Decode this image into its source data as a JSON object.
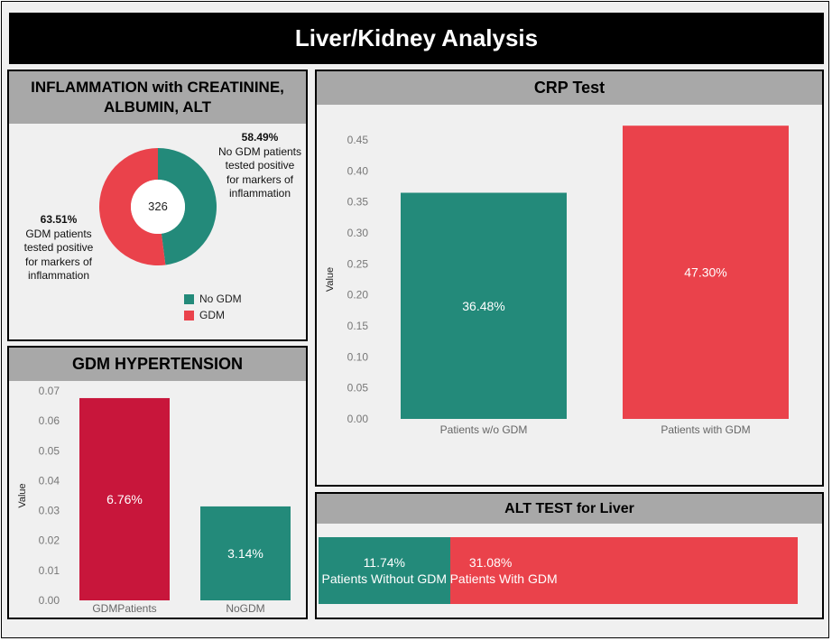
{
  "dashboard": {
    "title": "Liver/Kidney Analysis"
  },
  "colors": {
    "teal": "#238A7A",
    "red": "#EA424B",
    "crimson": "#C8163B",
    "header_gray": "#A8A8A8",
    "panel_bg": "#F0F0F0"
  },
  "inflammation": {
    "title_line1": "INFLAMMATION with CREATININE,",
    "title_line2": "ALBUMIN, ALT",
    "center_label": "326",
    "nogdm_pct": "58.49%",
    "nogdm_note": [
      "No GDM patients",
      "tested positive",
      "for markers of",
      "inflammation"
    ],
    "gdm_pct": "63.51%",
    "gdm_note": [
      "GDM patients",
      "tested positive",
      "for markers of",
      "inflammation"
    ],
    "legend": [
      {
        "label": "No GDM",
        "color": "#238A7A"
      },
      {
        "label": "GDM",
        "color": "#EA424B"
      }
    ]
  },
  "hypertension": {
    "title": "GDM HYPERTENSION"
  },
  "crp": {
    "title": "CRP Test"
  },
  "alt": {
    "title": "ALT TEST for Liver",
    "segments": [
      {
        "pct": "11.74%",
        "label": "Patients Without GDM",
        "color": "#238A7A"
      },
      {
        "pct": "31.08%",
        "label": "Patients With GDM",
        "color": "#EA424B"
      }
    ]
  },
  "chart_data": [
    {
      "id": "inflammation",
      "type": "pie",
      "title": "INFLAMMATION with CREATININE, ALBUMIN, ALT",
      "center_label": "326",
      "categories": [
        "No GDM",
        "GDM"
      ],
      "values": [
        0.4794,
        0.5206
      ],
      "colors": [
        "#238A7A",
        "#EA424B"
      ],
      "annotations": [
        "58.49% No GDM patients tested positive for markers of inflammation",
        "63.51% GDM patients tested positive for markers of inflammation"
      ],
      "legend": "bottom-right"
    },
    {
      "id": "hypertension",
      "type": "bar",
      "title": "GDM HYPERTENSION",
      "categories": [
        "GDMPatients",
        "NoGDM"
      ],
      "values": [
        0.0676,
        0.0314
      ],
      "labels": [
        "6.76%",
        "3.14%"
      ],
      "colors": [
        "#C8163B",
        "#238A7A"
      ],
      "ylabel": "Value",
      "ylim": [
        0,
        0.07
      ],
      "yticks": [
        0.0,
        0.01,
        0.02,
        0.03,
        0.04,
        0.05,
        0.06,
        0.07
      ],
      "ytick_labels": [
        "0.00",
        "0.01",
        "0.02",
        "0.03",
        "0.04",
        "0.05",
        "0.06",
        "0.07"
      ],
      "grid": false
    },
    {
      "id": "crp",
      "type": "bar",
      "title": "CRP Test",
      "categories": [
        "Patients w/o GDM",
        "Patients with GDM"
      ],
      "values": [
        0.3648,
        0.473
      ],
      "labels": [
        "36.48%",
        "47.30%"
      ],
      "colors": [
        "#238A7A",
        "#EA424B"
      ],
      "ylabel": "Value",
      "ylim": [
        0,
        0.45
      ],
      "yticks": [
        0.0,
        0.05,
        0.1,
        0.15,
        0.2,
        0.25,
        0.3,
        0.35,
        0.4,
        0.45
      ],
      "ytick_labels": [
        "0.00",
        "0.05",
        "0.10",
        "0.15",
        "0.20",
        "0.25",
        "0.30",
        "0.35",
        "0.40",
        "0.45"
      ],
      "grid": false
    },
    {
      "id": "alt",
      "type": "bar",
      "orientation": "horizontal-stacked",
      "title": "ALT TEST for Liver",
      "categories": [
        "Patients Without GDM",
        "Patients With GDM"
      ],
      "values": [
        0.1174,
        0.3108
      ],
      "labels": [
        "11.74%",
        "31.08%"
      ],
      "colors": [
        "#238A7A",
        "#EA424B"
      ]
    }
  ]
}
